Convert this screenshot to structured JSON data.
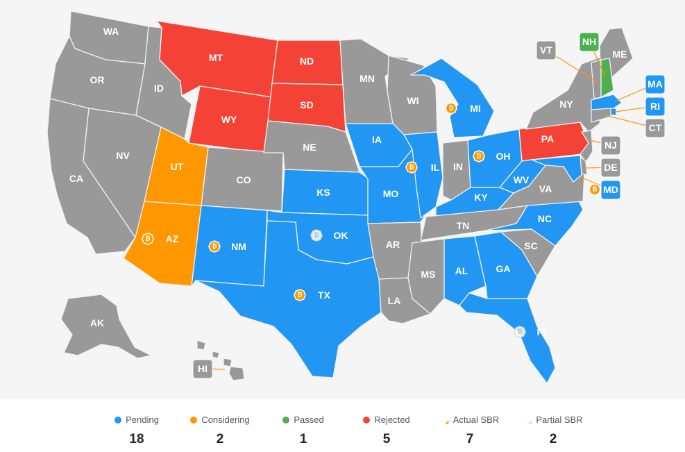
{
  "colors": {
    "pending": "#2196f3",
    "considering": "#ff9800",
    "passed": "#4caf50",
    "rejected": "#f44336",
    "none": "#999999",
    "background": "#f5f5f5",
    "sbr_actual": "#ff9800",
    "sbr_partial": "#ffffff"
  },
  "states": {
    "WA": {
      "label": "WA",
      "status": "none"
    },
    "OR": {
      "label": "OR",
      "status": "none"
    },
    "CA": {
      "label": "CA",
      "status": "none"
    },
    "NV": {
      "label": "NV",
      "status": "none"
    },
    "ID": {
      "label": "ID",
      "status": "none"
    },
    "MT": {
      "label": "MT",
      "status": "rejected"
    },
    "WY": {
      "label": "WY",
      "status": "rejected"
    },
    "UT": {
      "label": "UT",
      "status": "considering"
    },
    "AZ": {
      "label": "AZ",
      "status": "considering",
      "sbr": "actual"
    },
    "CO": {
      "label": "CO",
      "status": "none"
    },
    "NM": {
      "label": "NM",
      "status": "pending",
      "sbr": "actual"
    },
    "ND": {
      "label": "ND",
      "status": "rejected"
    },
    "SD": {
      "label": "SD",
      "status": "rejected"
    },
    "NE": {
      "label": "NE",
      "status": "none"
    },
    "KS": {
      "label": "KS",
      "status": "pending"
    },
    "OK": {
      "label": "OK",
      "status": "pending",
      "sbr": "partial"
    },
    "TX": {
      "label": "TX",
      "status": "pending",
      "sbr": "actual"
    },
    "MN": {
      "label": "MN",
      "status": "none"
    },
    "IA": {
      "label": "IA",
      "status": "pending"
    },
    "MO": {
      "label": "MO",
      "status": "pending"
    },
    "AR": {
      "label": "AR",
      "status": "none"
    },
    "LA": {
      "label": "LA",
      "status": "none"
    },
    "WI": {
      "label": "WI",
      "status": "none"
    },
    "IL": {
      "label": "IL",
      "status": "pending",
      "sbr": "actual"
    },
    "MI": {
      "label": "MI",
      "status": "pending",
      "sbr": "actual"
    },
    "IN": {
      "label": "IN",
      "status": "none"
    },
    "OH": {
      "label": "OH",
      "status": "pending",
      "sbr": "actual"
    },
    "KY": {
      "label": "KY",
      "status": "pending"
    },
    "TN": {
      "label": "TN",
      "status": "none"
    },
    "MS": {
      "label": "MS",
      "status": "none"
    },
    "AL": {
      "label": "AL",
      "status": "pending"
    },
    "GA": {
      "label": "GA",
      "status": "pending"
    },
    "FL": {
      "label": "FL",
      "status": "pending",
      "sbr": "partial"
    },
    "SC": {
      "label": "SC",
      "status": "none"
    },
    "NC": {
      "label": "NC",
      "status": "pending"
    },
    "VA": {
      "label": "VA",
      "status": "none"
    },
    "WV": {
      "label": "WV",
      "status": "pending"
    },
    "PA": {
      "label": "PA",
      "status": "rejected"
    },
    "NY": {
      "label": "NY",
      "status": "none"
    },
    "ME": {
      "label": "ME",
      "status": "none"
    },
    "AK": {
      "label": "AK",
      "status": "none"
    },
    "HI": {
      "label": "HI",
      "status": "none"
    },
    "VT": {
      "label": "VT",
      "status": "none"
    },
    "NH": {
      "label": "NH",
      "status": "passed"
    },
    "MA": {
      "label": "MA",
      "status": "pending"
    },
    "RI": {
      "label": "RI",
      "status": "pending"
    },
    "CT": {
      "label": "CT",
      "status": "none"
    },
    "NJ": {
      "label": "NJ",
      "status": "none"
    },
    "DE": {
      "label": "DE",
      "status": "none"
    },
    "MD": {
      "label": "MD",
      "status": "pending",
      "sbr": "actual"
    }
  },
  "legend": [
    {
      "key": "pending",
      "label": "Pending",
      "count": "18",
      "marker": "dot"
    },
    {
      "key": "considering",
      "label": "Considering",
      "count": "2",
      "marker": "dot"
    },
    {
      "key": "passed",
      "label": "Passed",
      "count": "1",
      "marker": "dot"
    },
    {
      "key": "rejected",
      "label": "Rejected",
      "count": "5",
      "marker": "dot"
    },
    {
      "key": "sbr_actual",
      "label": "Actual SBR",
      "count": "7",
      "marker": "coin"
    },
    {
      "key": "sbr_partial",
      "label": "Partial SBR",
      "count": "2",
      "marker": "coin-partial"
    }
  ]
}
